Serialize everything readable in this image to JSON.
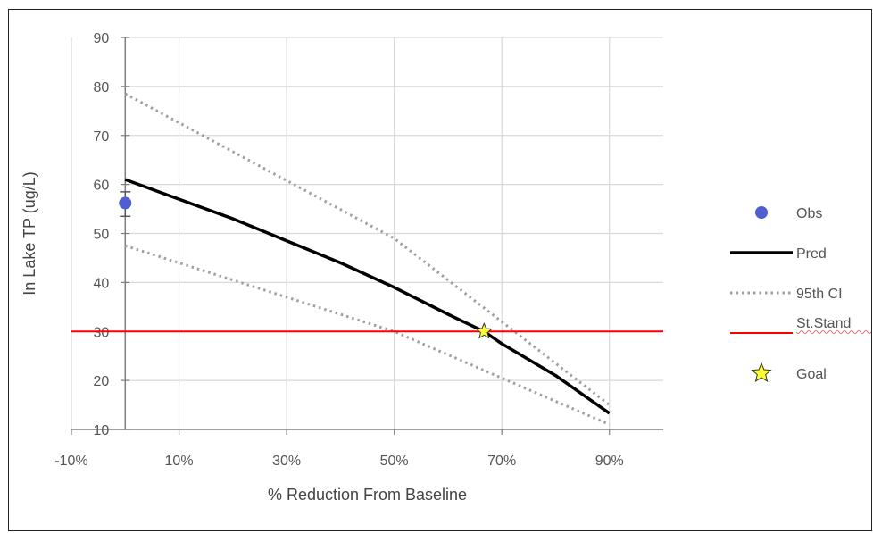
{
  "chart_data": {
    "type": "line",
    "xlabel": "% Reduction From Baseline",
    "ylabel": "In Lake TP (ug/L)",
    "xlim": [
      -10,
      100
    ],
    "ylim": [
      10,
      90
    ],
    "x_ticks": [
      -10,
      10,
      30,
      50,
      70,
      90
    ],
    "x_tick_labels": [
      "-10%",
      "10%",
      "30%",
      "50%",
      "70%",
      "90%"
    ],
    "y_ticks": [
      10,
      20,
      30,
      40,
      50,
      60,
      70,
      80,
      90
    ],
    "y_tick_labels": [
      "10",
      "20",
      "30",
      "40",
      "50",
      "60",
      "70",
      "80",
      "90"
    ],
    "grid": true,
    "legend_position": "right",
    "series": [
      {
        "name": "Obs",
        "kind": "point",
        "color": "#4f5fcf",
        "x": [
          0
        ],
        "y": [
          56.2
        ],
        "error_low": [
          53.5
        ],
        "error_high": [
          58.5
        ]
      },
      {
        "name": "Pred",
        "kind": "line",
        "color": "#000000",
        "x": [
          0,
          10,
          20,
          30,
          40,
          50,
          60,
          66.7,
          70,
          80,
          90
        ],
        "y": [
          61,
          57,
          53,
          48.5,
          44,
          39,
          33.5,
          30,
          27.5,
          21,
          13.3
        ]
      },
      {
        "name": "95th CI",
        "kind": "dotted",
        "color": "#a0a0a0",
        "x": [
          0,
          50,
          90
        ],
        "y": [
          78.5,
          49,
          15
        ]
      },
      {
        "name": "95th CI",
        "kind": "dotted",
        "color": "#a0a0a0",
        "x": [
          0,
          50,
          90
        ],
        "y": [
          47.5,
          30,
          11
        ]
      },
      {
        "name": "St.Stand",
        "kind": "hline",
        "color": "#ff0000",
        "y": 30
      },
      {
        "name": "Goal",
        "kind": "star",
        "color": "#ffff33",
        "x": [
          66.7
        ],
        "y": [
          30
        ]
      }
    ],
    "legend": [
      {
        "label": "Obs",
        "kind": "point",
        "color": "#4f5fcf"
      },
      {
        "label": "Pred",
        "kind": "line",
        "color": "#000000"
      },
      {
        "label": "95th CI",
        "kind": "dotted",
        "color": "#a0a0a0"
      },
      {
        "label": "St.Stand",
        "kind": "hline",
        "color": "#ff0000"
      },
      {
        "label": "Goal",
        "kind": "star",
        "color": "#ffff33"
      }
    ]
  }
}
